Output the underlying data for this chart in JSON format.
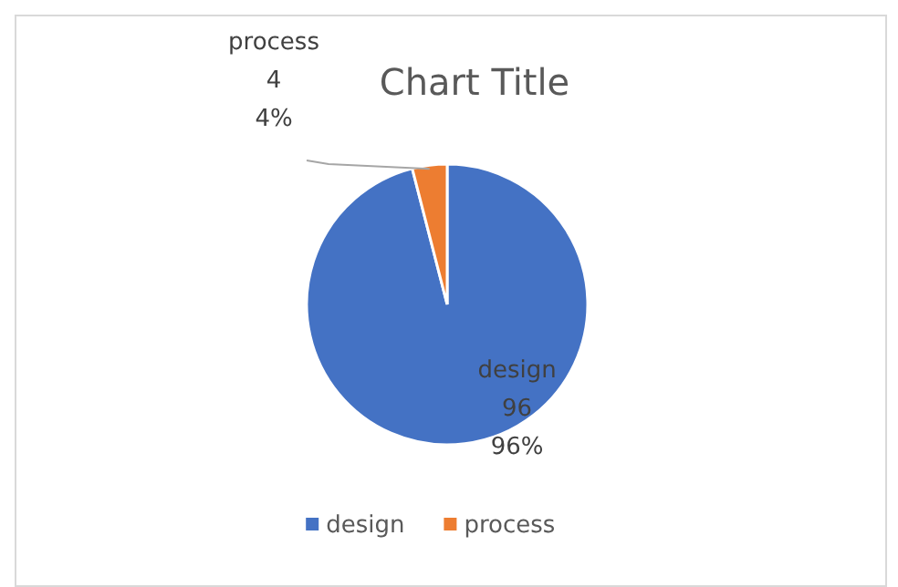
{
  "chart_data": {
    "type": "pie",
    "title": "Chart Title",
    "categories": [
      "design",
      "process"
    ],
    "values": [
      96,
      4
    ],
    "colors": [
      "#4472c4",
      "#ed7d31"
    ],
    "value_labels": [
      "design\n96\n96%",
      "process\n4\n4%"
    ],
    "legend": "bottom"
  }
}
